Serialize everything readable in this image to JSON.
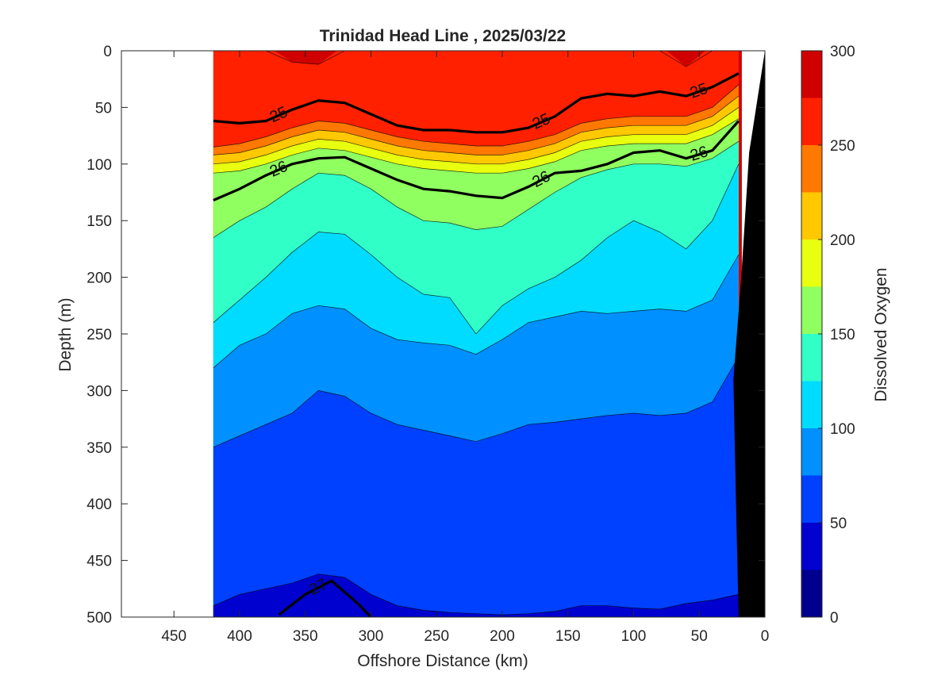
{
  "chart_data": {
    "type": "contour",
    "title": "Trinidad Head Line , 2025/03/22",
    "xlabel": "Offshore Distance (km)",
    "ylabel": "Depth (m)",
    "colorbar_label": "Dissolved Oxygen",
    "xlim": [
      490,
      0
    ],
    "ylim": [
      0,
      500
    ],
    "x_ticks": [
      450,
      400,
      350,
      300,
      250,
      200,
      150,
      100,
      50,
      0
    ],
    "y_ticks": [
      0,
      50,
      100,
      150,
      200,
      250,
      300,
      350,
      400,
      450,
      500
    ],
    "colorbar_ticks": [
      0,
      50,
      100,
      150,
      200,
      250,
      300
    ],
    "colorbar_levels": [
      0,
      25,
      50,
      75,
      100,
      125,
      150,
      175,
      200,
      225,
      250,
      275,
      300
    ],
    "colorbar_colors": [
      "#00008f",
      "#0000cf",
      "#0040ff",
      "#0090ff",
      "#00dcff",
      "#30ffc8",
      "#90ff60",
      "#e8ff10",
      "#ffc800",
      "#ff7800",
      "#ff2000",
      "#d00000"
    ],
    "data_extent_x": [
      420,
      20
    ],
    "stations_x": [
      420,
      400,
      380,
      360,
      340,
      320,
      300,
      280,
      260,
      240,
      220,
      200,
      180,
      160,
      140,
      120,
      100,
      80,
      60,
      40,
      20
    ],
    "oxygen_boundaries": [
      {
        "level": 275,
        "depth": [
          -5,
          -5,
          -5,
          10,
          12,
          -5,
          -5,
          -5,
          -5,
          -5,
          -5,
          -5,
          -5,
          -5,
          -5,
          -5,
          -5,
          -5,
          14,
          -5,
          -5
        ]
      },
      {
        "level": 250,
        "depth": [
          85,
          82,
          76,
          68,
          62,
          64,
          70,
          76,
          80,
          82,
          84,
          84,
          80,
          74,
          64,
          60,
          58,
          58,
          58,
          50,
          30
        ]
      },
      {
        "level": 225,
        "depth": [
          92,
          90,
          84,
          76,
          70,
          72,
          78,
          84,
          88,
          90,
          92,
          92,
          88,
          82,
          72,
          68,
          66,
          66,
          66,
          58,
          40
        ]
      },
      {
        "level": 200,
        "depth": [
          100,
          98,
          92,
          84,
          78,
          80,
          86,
          92,
          96,
          98,
          100,
          100,
          96,
          90,
          80,
          76,
          74,
          74,
          74,
          66,
          50
        ]
      },
      {
        "level": 175,
        "depth": [
          108,
          106,
          100,
          92,
          86,
          88,
          94,
          100,
          104,
          106,
          108,
          108,
          104,
          98,
          88,
          84,
          82,
          82,
          82,
          74,
          60
        ]
      },
      {
        "level": 150,
        "depth": [
          165,
          150,
          138,
          122,
          108,
          110,
          122,
          138,
          150,
          152,
          158,
          155,
          140,
          125,
          112,
          105,
          100,
          100,
          102,
          95,
          80
        ]
      },
      {
        "level": 125,
        "depth": [
          240,
          220,
          200,
          178,
          160,
          162,
          180,
          200,
          215,
          218,
          250,
          225,
          210,
          200,
          185,
          165,
          150,
          160,
          175,
          150,
          100
        ]
      },
      {
        "level": 100,
        "depth": [
          280,
          260,
          250,
          232,
          225,
          228,
          245,
          255,
          258,
          260,
          268,
          255,
          240,
          235,
          230,
          232,
          230,
          228,
          230,
          220,
          180
        ]
      },
      {
        "level": 75,
        "depth": [
          350,
          340,
          330,
          320,
          300,
          305,
          320,
          330,
          335,
          340,
          345,
          338,
          330,
          328,
          325,
          322,
          320,
          322,
          320,
          310,
          270
        ]
      },
      {
        "level": 50,
        "depth": [
          490,
          480,
          475,
          470,
          462,
          465,
          480,
          490,
          494,
          496,
          497,
          498,
          497,
          495,
          490,
          490,
          492,
          493,
          488,
          485,
          480
        ]
      }
    ],
    "density_contours": [
      {
        "label": "25",
        "x": [
          420,
          400,
          380,
          360,
          340,
          320,
          300,
          280,
          260,
          240,
          220,
          200,
          180,
          160,
          140,
          120,
          100,
          80,
          60,
          40,
          20
        ],
        "depth": [
          62,
          64,
          62,
          52,
          44,
          46,
          56,
          66,
          70,
          70,
          72,
          72,
          68,
          58,
          42,
          38,
          40,
          36,
          40,
          32,
          20
        ]
      },
      {
        "label": "26",
        "x": [
          420,
          400,
          380,
          360,
          340,
          320,
          300,
          280,
          260,
          240,
          220,
          200,
          180,
          160,
          140,
          120,
          100,
          80,
          60,
          40,
          20
        ],
        "depth": [
          132,
          122,
          110,
          100,
          95,
          94,
          104,
          114,
          122,
          124,
          128,
          130,
          120,
          108,
          106,
          100,
          90,
          88,
          95,
          88,
          62
        ]
      },
      {
        "label": "27",
        "x": [
          370,
          350,
          330,
          310,
          300
        ],
        "depth": [
          498,
          480,
          468,
          488,
          500
        ]
      }
    ]
  }
}
